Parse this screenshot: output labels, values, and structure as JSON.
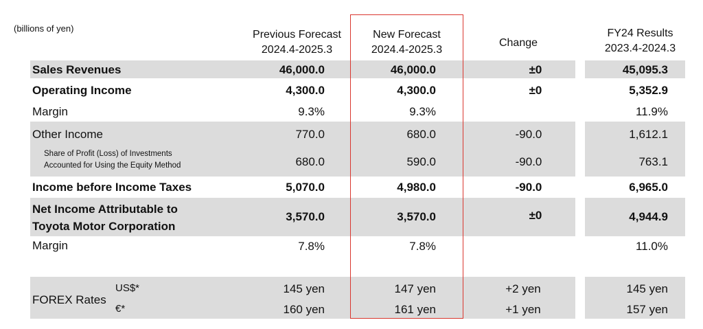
{
  "units": "(billions of yen)",
  "headers": {
    "prev": {
      "title": "Previous Forecast",
      "period": "2024.4-2025.3"
    },
    "new": {
      "title": "New Forecast",
      "period": "2024.4-2025.3"
    },
    "change": {
      "title": "Change"
    },
    "fy24": {
      "title": "FY24 Results",
      "period": "2023.4-2024.3"
    }
  },
  "rows": {
    "sales": {
      "label": "Sales Revenues",
      "prev": "46,000.0",
      "new": "46,000.0",
      "change": "±0",
      "fy24": "45,095.3"
    },
    "operating": {
      "label": "Operating Income",
      "prev": "4,300.0",
      "new": "4,300.0",
      "change": "±0",
      "fy24": "5,352.9"
    },
    "margin1": {
      "label": "Margin",
      "prev": "9.3%",
      "new": "9.3%",
      "change": "",
      "fy24": "11.9%"
    },
    "other": {
      "label": "Other Income",
      "prev": "770.0",
      "new": "680.0",
      "change": "-90.0",
      "fy24": "1,612.1"
    },
    "share": {
      "label_line1": "Share of Profit (Loss) of Investments",
      "label_line2": "Accounted for Using the Equity Method",
      "prev": "680.0",
      "new": "590.0",
      "change": "-90.0",
      "fy24": "763.1"
    },
    "ibt": {
      "label": "Income before Income Taxes",
      "prev": "5,070.0",
      "new": "4,980.0",
      "change": "-90.0",
      "fy24": "6,965.0"
    },
    "net": {
      "label_line1": "Net Income Attributable to",
      "label_line2": "Toyota Motor Corporation",
      "prev": "3,570.0",
      "new": "3,570.0",
      "change": "±0",
      "fy24": "4,944.9"
    },
    "margin2": {
      "label": "Margin",
      "prev": "7.8%",
      "new": "7.8%",
      "change": "",
      "fy24": "11.0%"
    }
  },
  "forex": {
    "label": "FOREX Rates",
    "usd": {
      "currency": "US$*",
      "prev": "145 yen",
      "new": "147 yen",
      "change": "+2 yen",
      "fy24": "145 yen"
    },
    "eur": {
      "currency": "€*",
      "prev": "160 yen",
      "new": "161 yen",
      "change": "+1 yen",
      "fy24": "157 yen"
    }
  },
  "colors": {
    "band": "#dcdcdc",
    "highlight": "#d9352d"
  }
}
